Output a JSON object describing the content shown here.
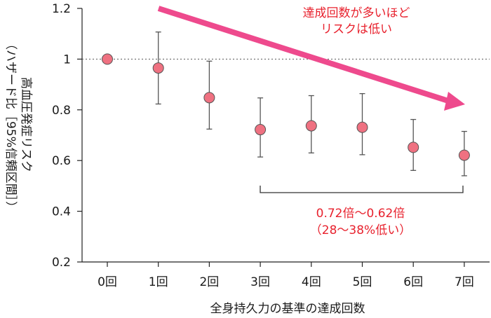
{
  "chart_data": {
    "type": "scatter",
    "categories": [
      "0回",
      "1回",
      "2回",
      "3回",
      "4回",
      "5回",
      "6回",
      "7回"
    ],
    "values": [
      1.0,
      0.965,
      0.848,
      0.722,
      0.737,
      0.731,
      0.652,
      0.621
    ],
    "ci_upper": [
      1.0,
      1.107,
      0.992,
      0.847,
      0.856,
      0.864,
      0.762,
      0.715
    ],
    "ci_lower": [
      1.0,
      0.823,
      0.724,
      0.614,
      0.63,
      0.623,
      0.561,
      0.54
    ],
    "yticks": [
      "0.2",
      "0.4",
      "0.6",
      "0.8",
      "1",
      "1.2"
    ],
    "ylim": [
      0.2,
      1.2
    ],
    "reference_line": 1,
    "xlabel": "全身持久力の基準の達成回数",
    "ylabel_main": "高血圧発症リスク",
    "ylabel_sub": "（ハザード比［95%信頼区間］）",
    "annotation_top": [
      "達成回数が多いほど",
      "リスクは低い"
    ],
    "annotation_bracket": [
      "0.72倍～0.62倍",
      "（28～38%低い）"
    ],
    "colors": {
      "marker_fill": "#ef7181",
      "marker_stroke": "#555555",
      "arrow": "#ee4a8d",
      "annotation_text": "#e8222e",
      "axis": "#222222",
      "reference": "#555555"
    }
  }
}
